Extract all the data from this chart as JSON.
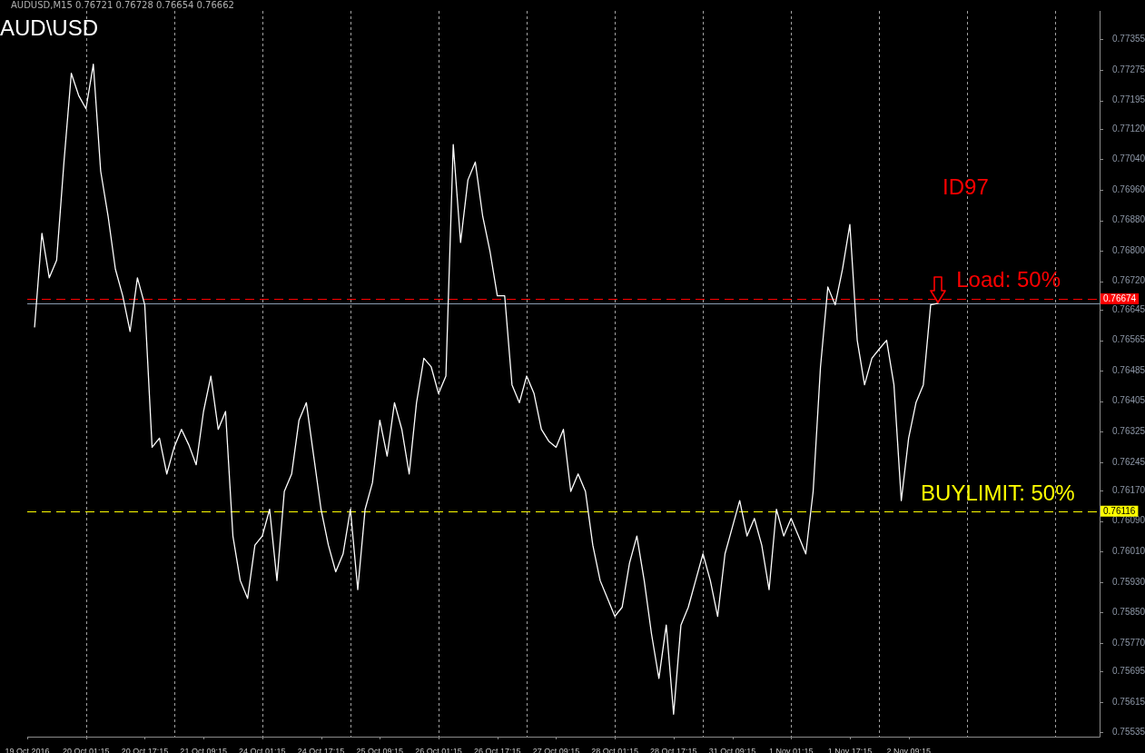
{
  "chart_data": {
    "type": "line",
    "title": "AUD\\USD",
    "subtitle": "AUDUSD,M15  0.76721 0.76728 0.76654 0.76662",
    "annotations": [
      "ID97",
      "Load: 50%",
      "BUYLIMIT: 50%"
    ],
    "categories": [
      "19 Oct 2016",
      null,
      null,
      null,
      null,
      null,
      null,
      null,
      "20 Oct 01:15",
      null,
      null,
      null,
      null,
      null,
      null,
      null,
      "20 Oct 17:15",
      null,
      null,
      null,
      null,
      null,
      null,
      null,
      "21 Oct 09:15",
      null,
      null,
      null,
      null,
      null,
      null,
      null,
      "24 Oct 01:15",
      null,
      null,
      null,
      null,
      null,
      null,
      null,
      "24 Oct 17:15",
      null,
      null,
      null,
      null,
      null,
      null,
      null,
      "25 Oct 09:15",
      null,
      null,
      null,
      null,
      null,
      null,
      null,
      "26 Oct 01:15",
      null,
      null,
      null,
      null,
      null,
      null,
      null,
      "26 Oct 17:15",
      null,
      null,
      null,
      null,
      null,
      null,
      null,
      "27 Oct 09:15",
      null,
      null,
      null,
      null,
      null,
      null,
      null,
      "28 Oct 01:15",
      null,
      null,
      null,
      null,
      null,
      null,
      null,
      "28 Oct 17:15",
      null,
      null,
      null,
      null,
      null,
      null,
      null,
      "31 Oct 09:15",
      null,
      null,
      null,
      null,
      null,
      null,
      null,
      "1 Nov 01:15",
      null,
      null,
      null,
      null,
      null,
      null,
      null,
      "1 Nov 17:15",
      null,
      null,
      null,
      null,
      null,
      null,
      null,
      "2 Nov 09:15",
      null,
      null,
      null,
      null,
      null,
      null,
      null,
      null,
      null,
      null,
      null,
      null,
      null,
      null,
      null,
      null,
      null,
      null,
      null,
      null,
      null,
      null,
      null,
      null,
      null,
      null
    ],
    "ylim": [
      0.75524,
      0.7743
    ],
    "yticks": [
      {
        "value": 0.77355,
        "label": "0.77355"
      },
      {
        "value": 0.77275,
        "label": "0.77275"
      },
      {
        "value": 0.77195,
        "label": "0.77195"
      },
      {
        "value": 0.7712,
        "label": "0.77120"
      },
      {
        "value": 0.7704,
        "label": "0.77040"
      },
      {
        "value": 0.7696,
        "label": "0.76960"
      },
      {
        "value": 0.7688,
        "label": "0.76880"
      },
      {
        "value": 0.768,
        "label": "0.76800"
      },
      {
        "value": 0.7672,
        "label": "0.76720"
      },
      {
        "value": 0.76645,
        "label": "0.76645"
      },
      {
        "value": 0.76565,
        "label": "0.76565"
      },
      {
        "value": 0.76485,
        "label": "0.76485"
      },
      {
        "value": 0.76405,
        "label": "0.76405"
      },
      {
        "value": 0.76325,
        "label": "0.76325"
      },
      {
        "value": 0.76245,
        "label": "0.76245"
      },
      {
        "value": 0.7617,
        "label": "0.76170"
      },
      {
        "value": 0.7609,
        "label": "0.76090"
      },
      {
        "value": 0.7601,
        "label": "0.76010"
      },
      {
        "value": 0.7593,
        "label": "0.75930"
      },
      {
        "value": 0.7585,
        "label": "0.75850"
      },
      {
        "value": 0.7577,
        "label": "0.75770"
      },
      {
        "value": 0.75695,
        "label": "0.75695"
      },
      {
        "value": 0.75615,
        "label": "0.75615"
      },
      {
        "value": 0.75535,
        "label": "0.75535"
      }
    ],
    "grid": "x",
    "marker": "none",
    "ref_lines": [
      {
        "axis": "y",
        "value": 0.76662,
        "color": "#8a9bb0",
        "line_style": "solid"
      },
      {
        "axis": "y",
        "value": 0.76674,
        "label": "0.76674",
        "color": "#ff0000",
        "line_style": "dashed"
      },
      {
        "axis": "y",
        "value": 0.76116,
        "label": "0.76116",
        "color": "#ffff00",
        "line_style": "dashed"
      }
    ],
    "series": [
      {
        "color": "#ffffff",
        "values": [
          null,
          0.766,
          0.76846,
          0.76729,
          0.76775,
          0.77033,
          0.77266,
          0.77208,
          0.77173,
          0.7729,
          0.77009,
          0.76892,
          0.76752,
          0.76682,
          0.76588,
          0.76729,
          0.76658,
          0.76284,
          0.76308,
          0.76214,
          0.76284,
          0.76331,
          0.7629,
          0.76238,
          0.76378,
          0.76471,
          0.76331,
          0.76378,
          0.76051,
          0.75934,
          0.75887,
          0.76027,
          0.76051,
          0.76121,
          0.75934,
          0.76168,
          0.76214,
          0.76355,
          0.76401,
          0.76261,
          0.76121,
          0.76027,
          0.75957,
          0.76004,
          0.76121,
          0.7591,
          0.76121,
          0.76191,
          0.76355,
          0.76261,
          0.76401,
          0.76331,
          0.76214,
          0.76401,
          0.76518,
          0.76495,
          0.76425,
          0.76471,
          0.77079,
          0.76822,
          0.76986,
          0.77033,
          0.76892,
          0.76799,
          0.76682,
          0.76682,
          0.76448,
          0.76401,
          0.76471,
          0.76425,
          0.76331,
          0.763,
          0.76284,
          0.76331,
          0.76168,
          0.76214,
          0.76168,
          0.76027,
          0.75934,
          0.75887,
          0.7584,
          0.75864,
          0.7598,
          0.76051,
          0.75934,
          0.75793,
          0.75677,
          0.75817,
          0.75583,
          0.75817,
          0.75864,
          0.75934,
          0.76004,
          0.75934,
          0.7584,
          0.76004,
          0.76074,
          0.76144,
          0.76051,
          0.76097,
          0.76027,
          0.7591,
          0.76121,
          0.76051,
          0.76097,
          0.76051,
          0.76004,
          0.76168,
          0.76495,
          0.76705,
          0.76658,
          0.76752,
          0.76869,
          0.76565,
          0.76448,
          0.76518,
          0.76542,
          0.76565,
          0.76448,
          0.76144,
          0.76308,
          0.76401,
          0.76448,
          0.76658,
          0.76662,
          null,
          null,
          null,
          null,
          null,
          null,
          null,
          null,
          null,
          null,
          null,
          null,
          null,
          null,
          null,
          null,
          null,
          null,
          null,
          null,
          null,
          null
        ]
      }
    ]
  }
}
